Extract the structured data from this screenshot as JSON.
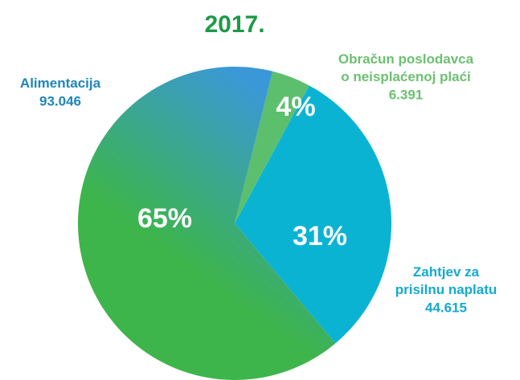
{
  "chart_data": {
    "type": "pie",
    "title": "2017.",
    "categories": [
      "Obračun poslodavca o neisplaćenoj plaći",
      "Zahtjev za prisilnu naplatu",
      "Alimentacija"
    ],
    "values": [
      4,
      31,
      65
    ],
    "value_labels": [
      "4%",
      "31%",
      "65%"
    ],
    "counts": [
      6391,
      44615,
      93046
    ],
    "count_labels": [
      "6.391",
      "44.615",
      "93.046"
    ],
    "colors": [
      "#5cbf6e",
      "#0bb3d2",
      "#3db54a"
    ]
  }
}
